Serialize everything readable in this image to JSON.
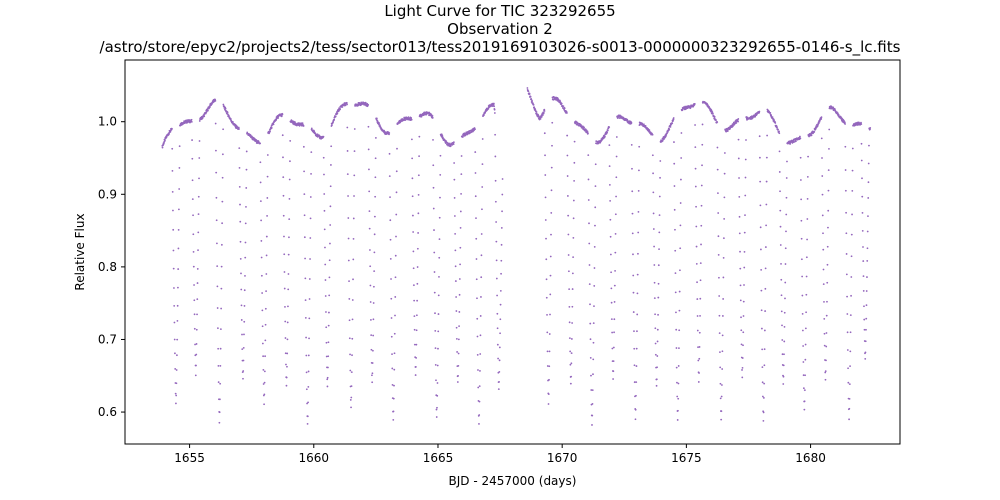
{
  "chart_data": {
    "type": "scatter",
    "title": "Light Curve for TIC 323292655",
    "subtitle": "Observation 2",
    "file_path": "/astro/store/epyc2/projects2/tess/sector013/tess2019169103026-s0013-0000000323292655-0146-s_lc.fits",
    "xlabel": "BJD - 2457000 (days)",
    "ylabel": "Relative Flux",
    "xlim": [
      1652.4,
      1683.6
    ],
    "ylim": [
      0.556,
      1.085
    ],
    "xticks": [
      1655,
      1660,
      1665,
      1670,
      1675,
      1680
    ],
    "xtick_labels": [
      "1655",
      "1660",
      "1665",
      "1670",
      "1675",
      "1680"
    ],
    "yticks": [
      0.6,
      0.7,
      0.8,
      0.9,
      1.0
    ],
    "ytick_labels": [
      "0.6",
      "0.7",
      "0.8",
      "0.9",
      "1.0"
    ],
    "marker_color": "#9467bd",
    "segments": [
      {
        "start": 1653.9,
        "end": 1667.6,
        "start_flux": 0.965,
        "end_flux": 0.945
      },
      {
        "start": 1668.6,
        "end": 1682.4,
        "start_flux": 1.045,
        "end_flux": 0.99
      }
    ],
    "eclipses": [
      {
        "t": 1654.45,
        "depth_flux": 0.612
      },
      {
        "t": 1655.25,
        "depth_flux": 0.652
      },
      {
        "t": 1656.2,
        "depth_flux": 0.585
      },
      {
        "t": 1657.15,
        "depth_flux": 0.645
      },
      {
        "t": 1658.0,
        "depth_flux": 0.612
      },
      {
        "t": 1658.9,
        "depth_flux": 0.636
      },
      {
        "t": 1659.75,
        "depth_flux": 0.582
      },
      {
        "t": 1660.55,
        "depth_flux": 0.635
      },
      {
        "t": 1661.5,
        "depth_flux": 0.605
      },
      {
        "t": 1662.35,
        "depth_flux": 0.64
      },
      {
        "t": 1663.2,
        "depth_flux": 0.588
      },
      {
        "t": 1664.1,
        "depth_flux": 0.65
      },
      {
        "t": 1664.95,
        "depth_flux": 0.592
      },
      {
        "t": 1665.8,
        "depth_flux": 0.64
      },
      {
        "t": 1666.65,
        "depth_flux": 0.583
      },
      {
        "t": 1667.45,
        "depth_flux": 0.63
      },
      {
        "t": 1669.45,
        "depth_flux": 0.612
      },
      {
        "t": 1670.35,
        "depth_flux": 0.638
      },
      {
        "t": 1671.2,
        "depth_flux": 0.582
      },
      {
        "t": 1672.05,
        "depth_flux": 0.645
      },
      {
        "t": 1672.95,
        "depth_flux": 0.592
      },
      {
        "t": 1673.8,
        "depth_flux": 0.636
      },
      {
        "t": 1674.65,
        "depth_flux": 0.588
      },
      {
        "t": 1675.5,
        "depth_flux": 0.643
      },
      {
        "t": 1676.4,
        "depth_flux": 0.59
      },
      {
        "t": 1677.25,
        "depth_flux": 0.648
      },
      {
        "t": 1678.1,
        "depth_flux": 0.588
      },
      {
        "t": 1678.9,
        "depth_flux": 0.64
      },
      {
        "t": 1679.75,
        "depth_flux": 0.604
      },
      {
        "t": 1680.6,
        "depth_flux": 0.644
      },
      {
        "t": 1681.55,
        "depth_flux": 0.59
      },
      {
        "t": 1682.2,
        "depth_flux": 0.672
      }
    ]
  }
}
